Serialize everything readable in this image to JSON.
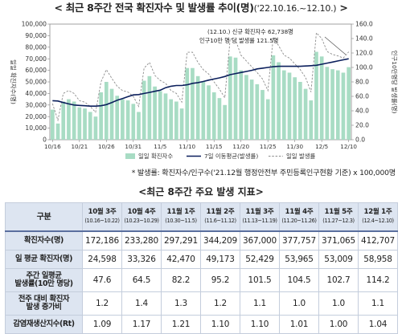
{
  "header": {
    "title_main": "< 최근 8주간 전국 확진자수 및 발생률 추이(명)",
    "title_period": "('22.10.16.~12.10.)",
    "title_end": " >"
  },
  "chart_data": {
    "type": "bar+line",
    "title": "최근 8주간 전국 확진자수 및 발생률 추이(명)",
    "y_left_label": "일일 확진자수(명)",
    "y_right_label": "인구10만명당 발생률(명)",
    "y_left_ticks": [
      "0",
      "10,000",
      "20,000",
      "30,000",
      "40,000",
      "50,000",
      "60,000",
      "70,000",
      "80,000",
      "90,000",
      "100,000"
    ],
    "y_right_ticks": [
      "0.0",
      "20.0",
      "40.0",
      "60.0",
      "80.0",
      "100.0",
      "120.0",
      "140.0",
      "160.0"
    ],
    "ylim_left": [
      0,
      100000
    ],
    "ylim_right": [
      0,
      160
    ],
    "x_ticks": [
      "10/16",
      "10/21",
      "10/26",
      "10/31",
      "11/5",
      "11/10",
      "11/15",
      "11/20",
      "11/25",
      "11/30",
      "12/5",
      "12/10"
    ],
    "x_tick_index": [
      0,
      5,
      10,
      15,
      20,
      25,
      30,
      35,
      40,
      45,
      50,
      55
    ],
    "legend": [
      "일일 확진자수",
      "7일 이동평균(발생률)",
      "일일 발생률"
    ],
    "annotation_1": "(12.10.) 신규 확진자수 62,738명",
    "annotation_2": "인구10만 명 당 발생률 121.5명",
    "daily_cases": [
      26000,
      14000,
      33000,
      35000,
      33000,
      28000,
      27000,
      24000,
      20000,
      41000,
      50000,
      44000,
      38000,
      35000,
      34000,
      31000,
      24000,
      51000,
      55000,
      46000,
      42000,
      40000,
      35000,
      33000,
      27000,
      62000,
      62000,
      55000,
      50000,
      47000,
      41000,
      36000,
      30000,
      72000,
      71000,
      60000,
      56000,
      52000,
      48000,
      43000,
      35000,
      73000,
      67000,
      60000,
      58000,
      54000,
      50000,
      44000,
      34000,
      76000,
      72000,
      63000,
      61000,
      60000,
      58000,
      62738
    ],
    "moving_avg_rate": [
      54.0,
      53.5,
      51.5,
      49.5,
      48.0,
      47.5,
      47.0,
      46.5,
      46.5,
      47.0,
      48.5,
      51.5,
      54.5,
      57.0,
      59.5,
      62.0,
      62.5,
      64.0,
      65.5,
      67.0,
      68.5,
      72.0,
      74.0,
      75.0,
      75.0,
      76.0,
      78.0,
      79.0,
      80.5,
      82.5,
      84.0,
      85.5,
      87.5,
      90.0,
      91.5,
      93.0,
      94.5,
      96.0,
      98.0,
      99.0,
      100.0,
      101.0,
      101.5,
      101.5,
      101.5,
      101.5,
      101.5,
      102.0,
      102.5,
      103.0,
      104.5,
      106.0,
      107.5,
      109.0,
      110.5,
      112.0
    ],
    "daily_rate": [
      50,
      27,
      64,
      68,
      64,
      54,
      52,
      46,
      38,
      80,
      97,
      85,
      74,
      68,
      66,
      60,
      46,
      99,
      107,
      89,
      82,
      78,
      68,
      64,
      52,
      121,
      121,
      107,
      97,
      91,
      80,
      70,
      58,
      140,
      138,
      117,
      109,
      101,
      93,
      84,
      68,
      142,
      130,
      117,
      113,
      105,
      97,
      86,
      66,
      148,
      140,
      122,
      118,
      116,
      113,
      121.5
    ],
    "footnote": "* 발생률: 확진자수/인구수('21.12월 행정안전부 주민등록인구현황 기준) x 100,000명"
  },
  "table": {
    "title": "<최근 8주간 주요 발생 지표>",
    "corner": "구분",
    "weeks": [
      {
        "label": "10월 3주",
        "range": "(10.16~10.22)"
      },
      {
        "label": "10월 4주",
        "range": "(10.23~10.29)"
      },
      {
        "label": "11월 1주",
        "range": "(10.30~11.5)"
      },
      {
        "label": "11월 2주",
        "range": "(11.6~11.12)"
      },
      {
        "label": "11월 3주",
        "range": "(11.13~11.19)"
      },
      {
        "label": "11월 4주",
        "range": "(11.20~11.26)"
      },
      {
        "label": "11월 5주",
        "range": "(11.27~12.3)"
      },
      {
        "label": "12월 1주",
        "range": "(12.4~12.10)"
      }
    ],
    "rows": [
      {
        "label1": "확진자수(명)",
        "label2": "",
        "values": [
          "172,186",
          "233,280",
          "297,291",
          "344,209",
          "367,000",
          "377,757",
          "371,065",
          "412,707"
        ]
      },
      {
        "label1": "일 평균 확진자(명)",
        "label2": "",
        "values": [
          "24,598",
          "33,326",
          "42,470",
          "49,173",
          "52,429",
          "53,965",
          "53,009",
          "58,958"
        ]
      },
      {
        "label1": "주간 일평균",
        "label2": "발생률(10만 명당)",
        "values": [
          "47.6",
          "64.5",
          "82.2",
          "95.2",
          "101.5",
          "104.5",
          "102.7",
          "114.2"
        ]
      },
      {
        "label1": "전주 대비 확진자",
        "label2": "발생 증가비",
        "values": [
          "1.2",
          "1.4",
          "1.3",
          "1.2",
          "1.1",
          "1.0",
          "1.0",
          "1.1"
        ]
      },
      {
        "label1": "감염재생산지수(Rt)",
        "label2": "",
        "values": [
          "1.09",
          "1.17",
          "1.21",
          "1.10",
          "1.10",
          "1.01",
          "1.00",
          "1.04"
        ]
      }
    ]
  }
}
